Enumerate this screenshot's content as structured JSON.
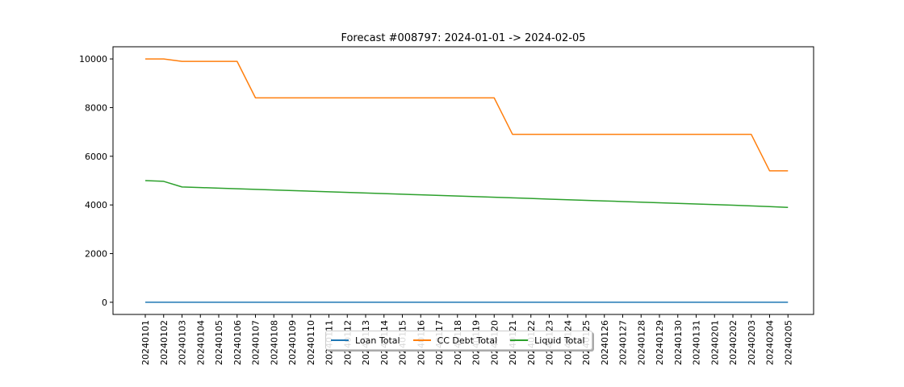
{
  "chart_data": {
    "type": "line",
    "title": "Forecast #008797: 2024-01-01 -> 2024-02-05",
    "xlabel": "",
    "ylabel": "",
    "ylim": [
      -500,
      10500
    ],
    "yticks": [
      0,
      2000,
      4000,
      6000,
      8000,
      10000
    ],
    "categories": [
      "20240101",
      "20240102",
      "20240103",
      "20240104",
      "20240105",
      "20240106",
      "20240107",
      "20240108",
      "20240109",
      "20240110",
      "20240111",
      "20240112",
      "20240113",
      "20240114",
      "20240115",
      "20240116",
      "20240117",
      "20240118",
      "20240119",
      "20240120",
      "20240121",
      "20240122",
      "20240123",
      "20240124",
      "20240125",
      "20240126",
      "20240127",
      "20240128",
      "20240129",
      "20240130",
      "20240131",
      "20240201",
      "20240202",
      "20240203",
      "20240204",
      "20240205"
    ],
    "series": [
      {
        "name": "Loan Total",
        "color": "#1f77b4",
        "values": [
          0,
          0,
          0,
          0,
          0,
          0,
          0,
          0,
          0,
          0,
          0,
          0,
          0,
          0,
          0,
          0,
          0,
          0,
          0,
          0,
          0,
          0,
          0,
          0,
          0,
          0,
          0,
          0,
          0,
          0,
          0,
          0,
          0,
          0,
          0,
          0
        ]
      },
      {
        "name": "CC Debt Total",
        "color": "#ff7f0e",
        "values": [
          10000,
          10000,
          9900,
          9900,
          9900,
          9900,
          8400,
          8400,
          8400,
          8400,
          8400,
          8400,
          8400,
          8400,
          8400,
          8400,
          8400,
          8400,
          8400,
          8400,
          6900,
          6900,
          6900,
          6900,
          6900,
          6900,
          6900,
          6900,
          6900,
          6900,
          6900,
          6900,
          6900,
          6900,
          5400,
          5400
        ]
      },
      {
        "name": "Liquid Total",
        "color": "#2ca02c",
        "values": [
          5000,
          4970,
          4740,
          4715,
          4690,
          4665,
          4640,
          4615,
          4590,
          4565,
          4540,
          4515,
          4490,
          4465,
          4440,
          4415,
          4390,
          4365,
          4340,
          4315,
          4290,
          4265,
          4240,
          4215,
          4190,
          4165,
          4140,
          4115,
          4090,
          4065,
          4040,
          4015,
          3990,
          3960,
          3930,
          3900
        ]
      }
    ],
    "legend": "bottom-center",
    "grid": false
  }
}
